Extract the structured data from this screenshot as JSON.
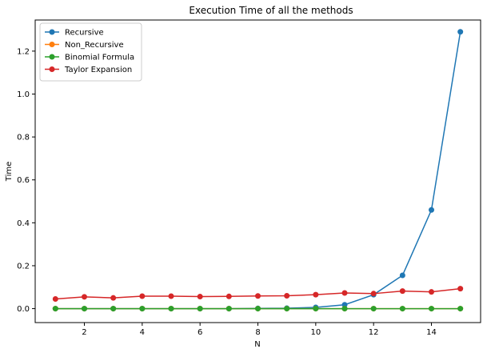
{
  "chart_data": {
    "type": "line",
    "title": "Execution Time of all the methods",
    "xlabel": "N",
    "ylabel": "Time",
    "x": [
      1,
      2,
      3,
      4,
      5,
      6,
      7,
      8,
      9,
      10,
      11,
      12,
      13,
      14,
      15
    ],
    "xlim": [
      0.3,
      15.7
    ],
    "ylim": [
      -0.065,
      1.345
    ],
    "xticks": [
      2,
      4,
      6,
      8,
      10,
      12,
      14
    ],
    "yticks": [
      0.0,
      0.2,
      0.4,
      0.6,
      0.8,
      1.0,
      1.2
    ],
    "ytick_labels": [
      "0.0",
      "0.2",
      "0.4",
      "0.6",
      "0.8",
      "1.0",
      "1.2"
    ],
    "grid": false,
    "legend_position": "top-left",
    "series": [
      {
        "name": "Recursive",
        "color": "#1f77b4",
        "values": [
          0.0,
          0.0,
          0.0,
          0.0,
          0.0,
          0.0,
          0.0,
          0.001,
          0.002,
          0.006,
          0.018,
          0.065,
          0.155,
          0.46,
          1.29
        ]
      },
      {
        "name": "Non_Recursive",
        "color": "#ff7f0e",
        "values": [
          0.0,
          0.0,
          0.0,
          0.0,
          0.0,
          0.0,
          0.0,
          0.0,
          0.0,
          0.0,
          0.0,
          0.0,
          0.0,
          0.0,
          0.0
        ]
      },
      {
        "name": "Binomial Formula",
        "color": "#2ca02c",
        "values": [
          0.0,
          0.0,
          0.0,
          0.0,
          0.0,
          0.0,
          0.0,
          0.0,
          0.0,
          0.0,
          0.0,
          0.0,
          0.0,
          0.0,
          0.0
        ]
      },
      {
        "name": "Taylor Expansion",
        "color": "#d62728",
        "values": [
          0.045,
          0.055,
          0.05,
          0.058,
          0.058,
          0.056,
          0.057,
          0.059,
          0.06,
          0.065,
          0.073,
          0.07,
          0.082,
          0.078,
          0.093
        ]
      }
    ]
  }
}
